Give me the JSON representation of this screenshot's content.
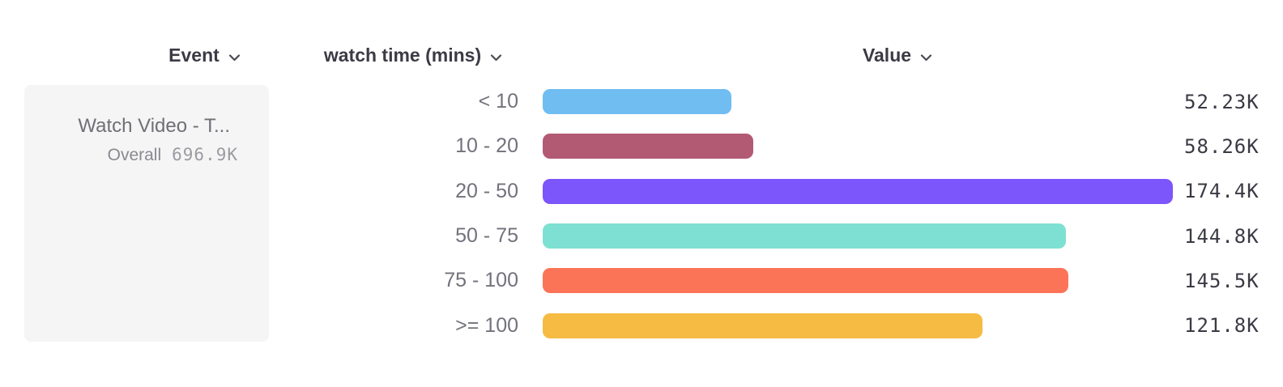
{
  "header": {
    "columns": [
      {
        "label": "Event"
      },
      {
        "label": "watch time (mins)"
      },
      {
        "label": "Value"
      }
    ]
  },
  "event_panel": {
    "name": "Watch Video - T...",
    "overall_label": "Overall",
    "overall_value": "696.9K"
  },
  "chart_data": {
    "type": "bar",
    "orientation": "horizontal",
    "title": "",
    "xlabel": "watch time (mins)",
    "ylabel": "Value",
    "categories": [
      "< 10",
      "10 - 20",
      "20 - 50",
      "50 - 75",
      "75 - 100",
      ">= 100"
    ],
    "values": [
      52230,
      58260,
      174400,
      144800,
      145500,
      121800
    ],
    "value_labels": [
      "52.23K",
      "58.26K",
      "174.4K",
      "144.8K",
      "145.5K",
      "121.8K"
    ],
    "bar_colors": [
      "#70BDF2",
      "#B25A74",
      "#7C55FB",
      "#7EE0D2",
      "#FC7457",
      "#F6BB42"
    ],
    "xlim": [
      0,
      174400
    ],
    "grid": false,
    "legend": false
  },
  "icons": {
    "chevron_down": "v"
  },
  "colors": {
    "header_text": "#3b3b46",
    "bucket_label_text": "#72727c",
    "value_text": "#3a3a44",
    "event_name_text": "#6f6f75",
    "overall_text": "#89898f",
    "panel_background": "#f5f5f6",
    "page_background": "#ffffff"
  }
}
